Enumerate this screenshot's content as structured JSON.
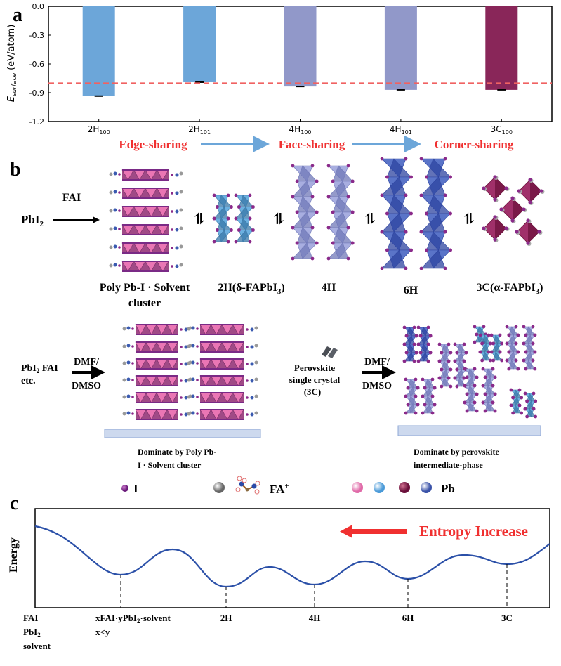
{
  "panel_labels": {
    "a": "a",
    "b": "b",
    "c": "c"
  },
  "chart_data": {
    "type": "bar",
    "title": "",
    "categories": [
      {
        "base": "2H",
        "sub": "100"
      },
      {
        "base": "2H",
        "sub": "101"
      },
      {
        "base": "4H",
        "sub": "100"
      },
      {
        "base": "4H",
        "sub": "101"
      },
      {
        "base": "3C",
        "sub": "100"
      }
    ],
    "values": [
      -0.935,
      -0.79,
      -0.835,
      -0.87,
      -0.87
    ],
    "bar_colors": [
      "#6ca6d9",
      "#6ca6d9",
      "#9198c9",
      "#9198c9",
      "#892659"
    ],
    "reference_line": -0.8,
    "reference_color": "#f06262",
    "ylabel": {
      "main": "E",
      "sub": "surface",
      "unit": "(eV/atom)"
    },
    "xlabel": "",
    "ylim": [
      -1.2,
      0.0
    ],
    "yticks": [
      0.0,
      -0.3,
      -0.6,
      -0.9,
      -1.2
    ],
    "ytick_labels": [
      "0.0",
      "-0.3",
      "-0.6",
      "-0.9",
      "-1.2"
    ],
    "grid": false
  },
  "sharing_flow": {
    "steps": [
      "Edge-sharing",
      "Face-sharing",
      "Corner-sharing"
    ],
    "text_color": "#f03030",
    "arrow_color": "#6ca6d9"
  },
  "panel_b": {
    "reactant": {
      "base": "PbI",
      "sub": "2"
    },
    "reagent": "FAI",
    "structures": [
      {
        "line1": "Poly Pb-I · Solvent",
        "line2": "cluster"
      },
      {
        "pre": "2H(δ-FAPbI",
        "sub": "3",
        "post": ")"
      },
      {
        "label": "4H"
      },
      {
        "label": "6H"
      },
      {
        "pre": "3C(α-FAPbI",
        "sub": "3",
        "post": ")"
      }
    ],
    "equilibrium_symbol": "⇌",
    "left_process": {
      "inputs_base": "PbI",
      "inputs_sub": "2",
      "inputs_post": " FAI",
      "inputs_line2": "etc.",
      "solvent_top": "DMF/",
      "solvent_bottom": "DMSO",
      "caption_line1": "Dominate by Poly Pb-",
      "caption_line2": "I · Solvent cluster"
    },
    "right_process": {
      "input_line1": "Perovskite",
      "input_line2": "single crystal",
      "input_line3": "(3C)",
      "solvent_top": "DMF/",
      "solvent_bottom": "DMSO",
      "caption_line1": "Dominate by perovskite",
      "caption_line2": "intermediate-phase"
    },
    "legend": {
      "iodine": "I",
      "fa_base": "FA",
      "fa_sup": "+",
      "lead": "Pb"
    }
  },
  "panel_c": {
    "ylabel": "Energy",
    "arrow_label": "Entropy Increase",
    "arrow_color": "#f03030",
    "curve_color": "#2b50a8",
    "states": [
      {
        "lines": [
          "FAI",
          "PbI|2",
          "solvent"
        ]
      },
      {
        "lines": [
          "xFAI·yPbI|2|·solvent",
          "x<y"
        ]
      },
      {
        "lines": [
          "2H"
        ]
      },
      {
        "lines": [
          "4H"
        ]
      },
      {
        "lines": [
          "6H"
        ]
      },
      {
        "lines": [
          "3C"
        ]
      }
    ],
    "state_labels": {
      "s0_l1": "FAI",
      "s0_l2_base": "PbI",
      "s0_l2_sub": "2",
      "s0_l3": "solvent",
      "s1_pre": "xFAI·yPbI",
      "s1_sub": "2",
      "s1_post": "·solvent",
      "s1_l2": "x<y",
      "s2": "2H",
      "s3": "4H",
      "s4": "6H",
      "s5": "3C"
    }
  }
}
